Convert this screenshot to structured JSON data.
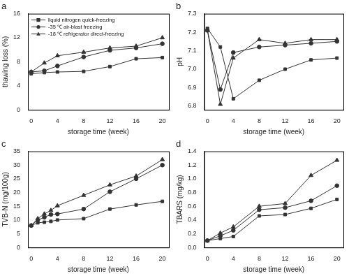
{
  "chart_data": [
    {
      "type": "line",
      "title": "a",
      "x_label": "storage time (week)",
      "y_label": "thawing loss (%)",
      "x": [
        0,
        2,
        4,
        8,
        12,
        16,
        20
      ],
      "series": [
        {
          "name": "liquid nitrogen quick-freezing",
          "color": "#333333",
          "marker": "square",
          "values": [
            6.0,
            6.2,
            6.3,
            6.4,
            7.2,
            8.5,
            8.7
          ]
        },
        {
          "name": "-35 ℃ air-blast freezing",
          "color": "#333333",
          "marker": "circle",
          "values": [
            6.3,
            6.5,
            7.3,
            8.8,
            9.9,
            10.3,
            11.0
          ]
        },
        {
          "name": "-18 ℃ refrigerator direct-freezing",
          "color": "#333333",
          "marker": "triangle",
          "values": [
            6.3,
            7.8,
            9.0,
            9.6,
            10.3,
            10.6,
            12.0
          ]
        }
      ],
      "xlim": [
        -0.5,
        21
      ],
      "xticks": [
        0,
        4,
        8,
        12,
        16,
        20
      ],
      "ylim": [
        0,
        16
      ],
      "yticks": [
        0,
        4,
        8,
        12,
        16
      ],
      "grid": false,
      "legend": "upper left"
    },
    {
      "type": "line",
      "title": "b",
      "x_label": "storage time (week)",
      "y_label": "pH",
      "x": [
        0,
        2,
        4,
        8,
        12,
        16,
        20
      ],
      "series": [
        {
          "name": "liquid nitrogen quick-freezing",
          "color": "#333333",
          "marker": "square",
          "values": [
            7.22,
            7.12,
            6.84,
            6.94,
            7.0,
            7.05,
            7.06
          ]
        },
        {
          "name": "-35 ℃ air-blast freezing",
          "color": "#333333",
          "marker": "circle",
          "values": [
            7.21,
            6.89,
            7.09,
            7.12,
            7.13,
            7.14,
            7.15
          ]
        },
        {
          "name": "-18 ℃ refrigerator direct-freezing",
          "color": "#333333",
          "marker": "triangle",
          "values": [
            7.21,
            6.81,
            7.06,
            7.16,
            7.14,
            7.16,
            7.16
          ]
        }
      ],
      "xlim": [
        -0.5,
        21
      ],
      "xticks": [
        0,
        4,
        8,
        12,
        16,
        20
      ],
      "ylim": [
        6.78,
        7.3
      ],
      "yticks": [
        6.8,
        6.9,
        {
          "value": 7.0,
          "label": "7.0"
        },
        7.1,
        7.2,
        7.3
      ],
      "grid": false
    },
    {
      "type": "line",
      "title": "c",
      "x_label": "storage time (week)",
      "y_label": "TVB-N (mg/100g)",
      "x": [
        0,
        1,
        2,
        3,
        4,
        8,
        12,
        16,
        20
      ],
      "series": [
        {
          "name": "liquid nitrogen quick-freezing",
          "color": "#333333",
          "marker": "square",
          "values": [
            8.0,
            9.0,
            9.2,
            9.5,
            10.0,
            10.5,
            14.0,
            15.5,
            16.8
          ]
        },
        {
          "name": "-35 ℃ air-blast freezing",
          "color": "#333333",
          "marker": "circle",
          "values": [
            8.0,
            10.0,
            11.0,
            12.0,
            12.2,
            14.0,
            20.3,
            25.0,
            30.0
          ]
        },
        {
          "name": "-18 ℃ refrigerator direct-freezing",
          "color": "#333333",
          "marker": "triangle",
          "values": [
            8.0,
            10.5,
            12.2,
            13.5,
            15.2,
            19.0,
            22.8,
            26.0,
            32.0
          ]
        }
      ],
      "xlim": [
        -0.5,
        21
      ],
      "xticks": [
        0,
        4,
        8,
        12,
        16,
        20
      ],
      "ylim": [
        0,
        35
      ],
      "yticks": [
        0,
        5,
        10,
        15,
        20,
        25,
        30,
        35
      ],
      "grid": false
    },
    {
      "type": "line",
      "title": "d",
      "x_label": "storage time (week)",
      "y_label": "TBARS (mg/kg)",
      "x": [
        0,
        2,
        4,
        8,
        12,
        16,
        20
      ],
      "series": [
        {
          "name": "liquid nitrogen quick-freezing",
          "color": "#333333",
          "marker": "square",
          "values": [
            0.1,
            0.13,
            0.16,
            0.46,
            0.48,
            0.57,
            0.7
          ]
        },
        {
          "name": "-35 ℃ air-blast freezing",
          "color": "#333333",
          "marker": "circle",
          "values": [
            0.1,
            0.17,
            0.25,
            0.55,
            0.58,
            0.68,
            0.9
          ]
        },
        {
          "name": "-18 ℃ refrigerator direct-freezing",
          "color": "#333333",
          "marker": "triangle",
          "values": [
            0.1,
            0.21,
            0.3,
            0.6,
            0.64,
            1.05,
            1.27
          ]
        }
      ],
      "xlim": [
        -0.5,
        21
      ],
      "xticks": [
        0,
        4,
        8,
        12,
        16,
        20
      ],
      "ylim": [
        0,
        1.4
      ],
      "yticks": [
        {
          "value": 0,
          "label": "0.0"
        },
        0.2,
        0.4,
        0.6,
        0.8,
        {
          "value": 1,
          "label": "1.0"
        },
        1.2,
        1.4
      ],
      "grid": false
    }
  ]
}
